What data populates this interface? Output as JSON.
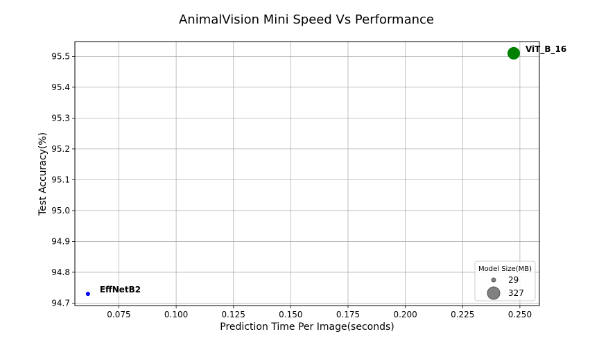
{
  "chart_data": {
    "type": "scatter",
    "title": "AnimalVision Mini Speed Vs Performance",
    "xlabel": "Prediction Time Per Image(seconds)",
    "ylabel": "Test Accuracy(%)",
    "xlim": [
      0.0558,
      0.2585
    ],
    "ylim": [
      94.692,
      95.548
    ],
    "x_ticks": [
      0.075,
      0.1,
      0.125,
      0.15,
      0.175,
      0.2,
      0.225,
      0.25
    ],
    "x_tick_labels": [
      "0.075",
      "0.100",
      "0.125",
      "0.150",
      "0.175",
      "0.200",
      "0.225",
      "0.250"
    ],
    "y_ticks": [
      94.7,
      94.8,
      94.9,
      95.0,
      95.1,
      95.2,
      95.3,
      95.4,
      95.5
    ],
    "y_tick_labels": [
      "94.7",
      "94.8",
      "94.9",
      "95.0",
      "95.1",
      "95.2",
      "95.3",
      "95.4",
      "95.5"
    ],
    "grid": true,
    "points": [
      {
        "label": "EffNetB2",
        "x": 0.0615,
        "y": 94.73,
        "size_mb": 29,
        "color": "#0000ff"
      },
      {
        "label": "ViT_B_16",
        "x": 0.2473,
        "y": 95.51,
        "size_mb": 327,
        "color": "#008000"
      }
    ],
    "legend": {
      "title": "Model Size(MB)",
      "placement": "lower right",
      "entries": [
        "29",
        "327"
      ],
      "marker_color": "#808080"
    }
  }
}
